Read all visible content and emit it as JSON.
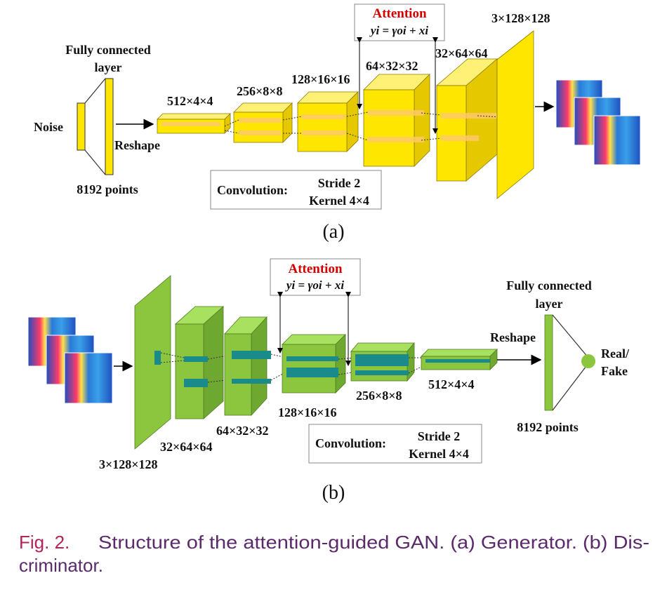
{
  "generator": {
    "attention_title": "Attention",
    "attention_formula": "yi = γoi + xi",
    "fc_label_line1": "Fully connected",
    "fc_label_line2": "layer",
    "noise_label": "Noise",
    "reshape_label": "Reshape",
    "points_label": "8192 points",
    "conv_label": "Convolution:",
    "stride_label": "Stride 2",
    "kernel_label": "Kernel 4×4",
    "layer_labels": [
      "512×4×4",
      "256×8×8",
      "128×16×16",
      "64×32×32",
      "32×64×64",
      "3×128×128"
    ],
    "subfig_label": "(a)",
    "colors": {
      "fill": "#ffe600",
      "top": "#fff176",
      "side": "#e6c800"
    }
  },
  "discriminator": {
    "attention_title": "Attention",
    "attention_formula": "yi = γoi + xi",
    "fc_label_line1": "Fully connected",
    "fc_label_line2": "layer",
    "reshape_label": "Reshape",
    "output_label_line1": "Real/",
    "output_label_line2": "Fake",
    "points_label": "8192 points",
    "conv_label": "Convolution:",
    "stride_label": "Stride 2",
    "kernel_label": "Kernel 4×4",
    "layer_labels": [
      "3×128×128",
      "32×64×64",
      "64×32×32",
      "128×16×16",
      "256×8×8",
      "512×4×4"
    ],
    "subfig_label": "(b)",
    "colors": {
      "fill": "#8cc63f",
      "top": "#a8e060",
      "side": "#6fa830",
      "inner": "#1a8a8a"
    }
  },
  "caption": {
    "fig_label": "Fig. 2.",
    "line1": "Structure of the attention-guided GAN. (a) Generator. (b) Dis-",
    "line2": "criminator."
  }
}
